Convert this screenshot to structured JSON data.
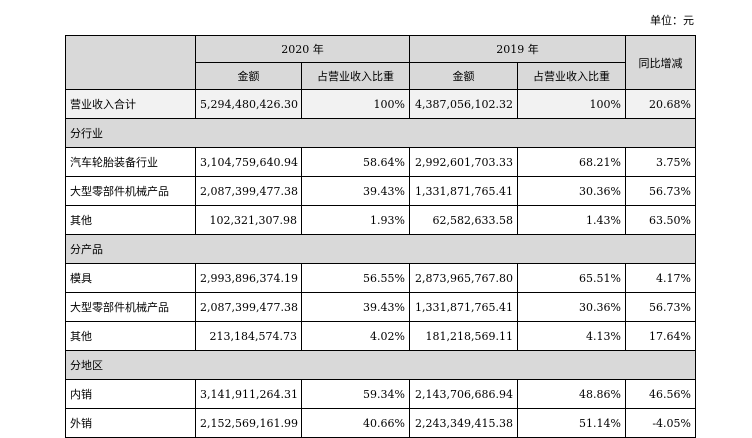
{
  "unit_label": "单位：元",
  "headers": {
    "year_2020": "2020 年",
    "year_2019": "2019 年",
    "amount": "金额",
    "share": "占营业收入比重",
    "yoy": "同比增减"
  },
  "rows": [
    {
      "type": "data",
      "shaded": true,
      "label": "营业收入合计",
      "amt2020": "5,294,480,426.30",
      "pct2020": "100%",
      "amt2019": "4,387,056,102.32",
      "pct2019": "100%",
      "yoy": "20.68%"
    },
    {
      "type": "section",
      "label": "分行业"
    },
    {
      "type": "data",
      "label": "汽车轮胎装备行业",
      "amt2020": "3,104,759,640.94",
      "pct2020": "58.64%",
      "amt2019": "2,992,601,703.33",
      "pct2019": "68.21%",
      "yoy": "3.75%"
    },
    {
      "type": "data",
      "label": "大型零部件机械产品",
      "amt2020": "2,087,399,477.38",
      "pct2020": "39.43%",
      "amt2019": "1,331,871,765.41",
      "pct2019": "30.36%",
      "yoy": "56.73%"
    },
    {
      "type": "data",
      "label": "其他",
      "amt2020": "102,321,307.98",
      "pct2020": "1.93%",
      "amt2019": "62,582,633.58",
      "pct2019": "1.43%",
      "yoy": "63.50%"
    },
    {
      "type": "section",
      "label": "分产品"
    },
    {
      "type": "data",
      "label": "模具",
      "amt2020": "2,993,896,374.19",
      "pct2020": "56.55%",
      "amt2019": "2,873,965,767.80",
      "pct2019": "65.51%",
      "yoy": "4.17%"
    },
    {
      "type": "data",
      "label": "大型零部件机械产品",
      "amt2020": "2,087,399,477.38",
      "pct2020": "39.43%",
      "amt2019": "1,331,871,765.41",
      "pct2019": "30.36%",
      "yoy": "56.73%"
    },
    {
      "type": "data",
      "label": "其他",
      "amt2020": "213,184,574.73",
      "pct2020": "4.02%",
      "amt2019": "181,218,569.11",
      "pct2019": "4.13%",
      "yoy": "17.64%"
    },
    {
      "type": "section",
      "label": "分地区"
    },
    {
      "type": "data",
      "label": "内销",
      "amt2020": "3,141,911,264.31",
      "pct2020": "59.34%",
      "amt2019": "2,143,706,686.94",
      "pct2019": "48.86%",
      "yoy": "46.56%"
    },
    {
      "type": "data",
      "label": "外销",
      "amt2020": "2,152,569,161.99",
      "pct2020": "40.66%",
      "amt2019": "2,243,349,415.38",
      "pct2019": "51.14%",
      "yoy": "-4.05%"
    }
  ]
}
